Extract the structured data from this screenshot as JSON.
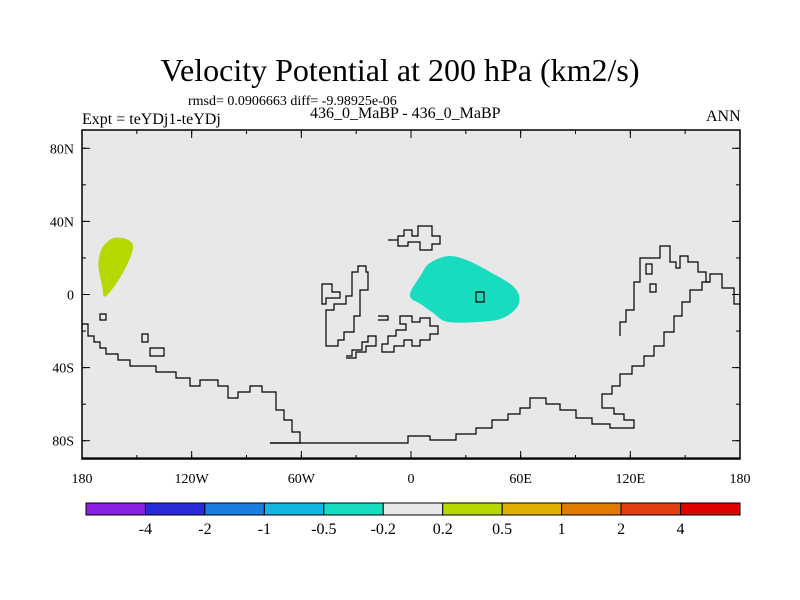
{
  "title": "Velocity Potential at 200 hPa (km2/s)",
  "stats_line": "rmsd= 0.0906663 diff= -9.98925e-06",
  "expt_label": "Expt = teYDj1-teYDj",
  "case_label": "436_0_MaBP - 436_0_MaBP",
  "season": "ANN",
  "chart_data": {
    "type": "contour-map",
    "projection": "cylindrical-equidistant",
    "lon_range": [
      -180,
      180
    ],
    "lat_range": [
      -90,
      90
    ],
    "x_ticks": [
      {
        "value": -180,
        "label": "180"
      },
      {
        "value": -120,
        "label": "120W"
      },
      {
        "value": -60,
        "label": "60W"
      },
      {
        "value": 0,
        "label": "0"
      },
      {
        "value": 60,
        "label": "60E"
      },
      {
        "value": 120,
        "label": "120E"
      },
      {
        "value": 180,
        "label": "180"
      }
    ],
    "y_ticks": [
      {
        "value": 80,
        "label": "80N"
      },
      {
        "value": 40,
        "label": "40N"
      },
      {
        "value": 0,
        "label": "0"
      },
      {
        "value": -40,
        "label": "40S"
      },
      {
        "value": -80,
        "label": "80S"
      }
    ],
    "background_color": "#e8e8e8",
    "colorbar": {
      "levels": [
        "-4",
        "-2",
        "-1",
        "-0.5",
        "-0.2",
        "0.2",
        "0.5",
        "1",
        "2",
        "4"
      ],
      "colors": [
        "#8a20e0",
        "#2a2ad8",
        "#1a7de0",
        "#12b4e0",
        "#18dcc0",
        "#e8e8e8",
        "#b4d800",
        "#e0b000",
        "#e07a00",
        "#e04010",
        "#e00000"
      ]
    },
    "shaded_regions": [
      {
        "name": "positive anomaly, tropical central Pacific",
        "range": "0.2 to 0.5",
        "color": "#b4d800",
        "lonlat": [
          [
            -167,
            28
          ],
          [
            -162,
            31
          ],
          [
            -155,
            30
          ],
          [
            -152,
            26
          ],
          [
            -155,
            17
          ],
          [
            -160,
            8
          ],
          [
            -165,
            1
          ],
          [
            -168,
            -1
          ],
          [
            -169,
            5
          ],
          [
            -171,
            15
          ],
          [
            -170,
            23
          ]
        ]
      },
      {
        "name": "negative anomaly, Africa / western Indian Ocean",
        "range": "-0.5 to -0.2",
        "color": "#18dcc0",
        "lonlat": [
          [
            0,
            2
          ],
          [
            5,
            10
          ],
          [
            10,
            17
          ],
          [
            20,
            21
          ],
          [
            30,
            19
          ],
          [
            42,
            13
          ],
          [
            54,
            6
          ],
          [
            59,
            0
          ],
          [
            58,
            -7
          ],
          [
            50,
            -13
          ],
          [
            38,
            -15
          ],
          [
            20,
            -15
          ],
          [
            12,
            -10
          ],
          [
            5,
            -5
          ],
          [
            0,
            -2
          ]
        ]
      }
    ]
  }
}
